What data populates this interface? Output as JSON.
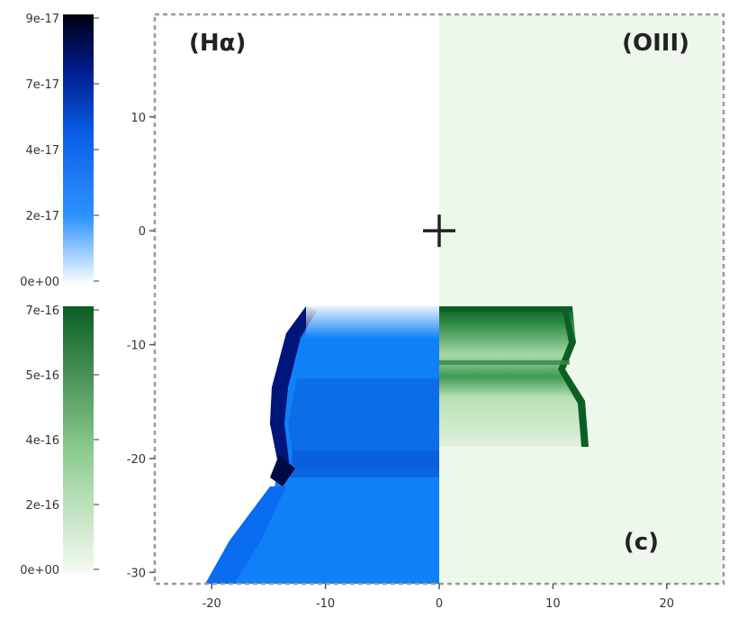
{
  "chart_data": {
    "type": "heatmap",
    "title": "",
    "xlabel": "",
    "ylabel": "",
    "xlim": [
      -25,
      25
    ],
    "ylim": [
      -31,
      19
    ],
    "x_ticks": [
      -20,
      -10,
      0,
      10,
      20
    ],
    "y_ticks": [
      10,
      0,
      -10,
      -20,
      -30
    ],
    "grid": false,
    "panels": {
      "left": {
        "label": "(Hα)",
        "side": "x < 0",
        "color_scale": "blue"
      },
      "right": {
        "label": "(OIII)",
        "side": "x > 0",
        "color_scale": "green"
      },
      "annotation": "(c)"
    },
    "marker": {
      "symbol": "+",
      "x": 0,
      "y": 0
    },
    "colorbars": [
      {
        "name": "Hα",
        "ticks": [
          "9e-17",
          "7e-17",
          "4e-17",
          "2e-17",
          "0e+00"
        ],
        "min": 0,
        "max": 9e-17,
        "colors": [
          "#ffffff",
          "#0a7cff",
          "#001a8a",
          "#000000"
        ]
      },
      {
        "name": "OIII",
        "ticks": [
          "7e-16",
          "5e-16",
          "4e-16",
          "2e-16",
          "0e+00"
        ],
        "min": 0,
        "max": 7e-16,
        "colors": [
          "#ffffff",
          "#7cc47c",
          "#0f6b2a"
        ]
      }
    ],
    "colors": {
      "halpha_fill": "#0a76f5",
      "halpha_dark": "#001070",
      "oiii_bg": "#eef7ec",
      "oiii_dark": "#0a5a1e"
    }
  }
}
